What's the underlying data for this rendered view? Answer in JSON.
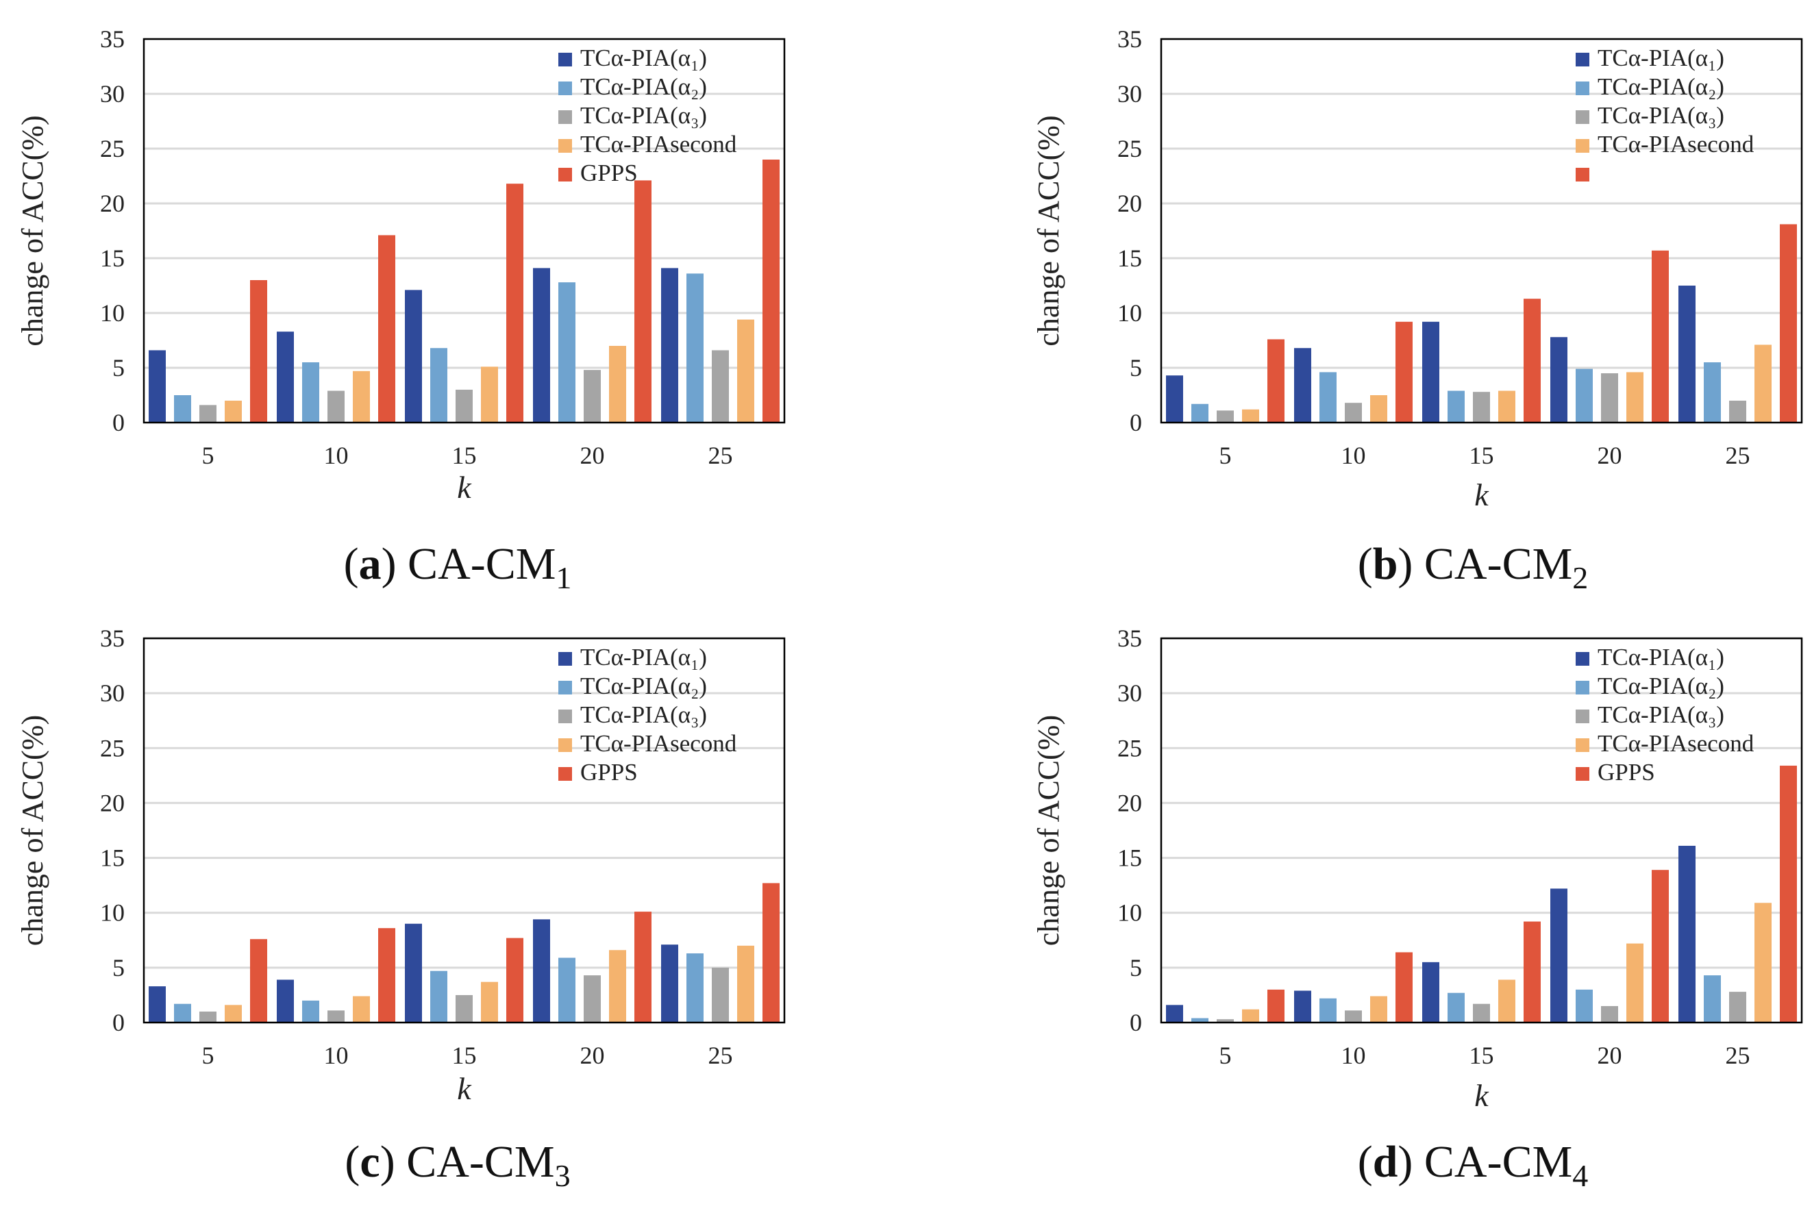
{
  "panels": [
    {
      "id": "a",
      "caption": {
        "letter": "a",
        "base": "CA-CM",
        "sub": "1"
      },
      "chart_data": {
        "type": "bar",
        "categories": [
          "5",
          "10",
          "15",
          "20",
          "25"
        ],
        "xlabel": "k",
        "ylabel": "change of ACC(%)",
        "ylim": [
          0,
          35
        ],
        "yticks": [
          0,
          5,
          10,
          15,
          20,
          25,
          30,
          35
        ],
        "grid": true,
        "legend_position": "top-right",
        "series": [
          {
            "name": "TCα-PIA(α₁)",
            "color": "#2f4a9a",
            "values": [
              6.6,
              8.3,
              12.1,
              14.1,
              14.1
            ]
          },
          {
            "name": "TCα-PIA(α₂)",
            "color": "#6fa3cf",
            "values": [
              2.5,
              5.5,
              6.8,
              12.8,
              13.6
            ]
          },
          {
            "name": "TCα-PIA(α₃)",
            "color": "#a5a5a5",
            "values": [
              1.6,
              2.9,
              3.0,
              4.8,
              6.6
            ]
          },
          {
            "name": "TCα-PIAsecond",
            "color": "#f4b36e",
            "values": [
              2.0,
              4.7,
              5.1,
              7.0,
              9.4
            ]
          },
          {
            "name": "GPPS",
            "color": "#e0553b",
            "values": [
              13.0,
              17.1,
              21.8,
              22.1,
              24.0
            ]
          }
        ]
      }
    },
    {
      "id": "b",
      "caption": {
        "letter": "b",
        "base": "CA-CM",
        "sub": "2"
      },
      "chart_data": {
        "type": "bar",
        "categories": [
          "5",
          "10",
          "15",
          "20",
          "25"
        ],
        "xlabel": "k",
        "ylabel": "change of ACC(%)",
        "ylim": [
          0,
          35
        ],
        "yticks": [
          0,
          5,
          10,
          15,
          20,
          25,
          30,
          35
        ],
        "grid": true,
        "legend_position": "top-right",
        "series": [
          {
            "name": "TCα-PIA(α₁)",
            "color": "#2f4a9a",
            "values": [
              4.3,
              6.8,
              9.2,
              7.8,
              12.5
            ]
          },
          {
            "name": "TCα-PIA(α₂)",
            "color": "#6fa3cf",
            "values": [
              1.7,
              4.6,
              2.9,
              4.9,
              5.5
            ]
          },
          {
            "name": "TCα-PIA(α₃)",
            "color": "#a5a5a5",
            "values": [
              1.1,
              1.8,
              2.8,
              4.5,
              2.0
            ]
          },
          {
            "name": "TCα-PIAsecond",
            "color": "#f4b36e",
            "values": [
              1.2,
              2.5,
              2.9,
              4.6,
              7.1
            ]
          },
          {
            "name": "",
            "color": "#e0553b",
            "values": [
              7.6,
              9.2,
              11.3,
              15.7,
              18.1
            ]
          }
        ]
      }
    },
    {
      "id": "c",
      "caption": {
        "letter": "c",
        "base": "CA-CM",
        "sub": "3"
      },
      "chart_data": {
        "type": "bar",
        "categories": [
          "5",
          "10",
          "15",
          "20",
          "25"
        ],
        "xlabel": "k",
        "ylabel": "change of ACC(%)",
        "ylim": [
          0,
          35
        ],
        "yticks": [
          0,
          5,
          10,
          15,
          20,
          25,
          30,
          35
        ],
        "grid": true,
        "legend_position": "top-right",
        "series": [
          {
            "name": "TCα-PIA(α₁)",
            "color": "#2f4a9a",
            "values": [
              3.3,
              3.9,
              9.0,
              9.4,
              7.1
            ]
          },
          {
            "name": "TCα-PIA(α₂)",
            "color": "#6fa3cf",
            "values": [
              1.7,
              2.0,
              4.7,
              5.9,
              6.3
            ]
          },
          {
            "name": "TCα-PIA(α₃)",
            "color": "#a5a5a5",
            "values": [
              1.0,
              1.1,
              2.5,
              4.3,
              5.0
            ]
          },
          {
            "name": "TCα-PIAsecond",
            "color": "#f4b36e",
            "values": [
              1.6,
              2.4,
              3.7,
              6.6,
              7.0
            ]
          },
          {
            "name": "GPPS",
            "color": "#e0553b",
            "values": [
              7.6,
              8.6,
              7.7,
              10.1,
              12.7
            ]
          }
        ]
      }
    },
    {
      "id": "d",
      "caption": {
        "letter": "d",
        "base": "CA-CM",
        "sub": "4"
      },
      "chart_data": {
        "type": "bar",
        "categories": [
          "5",
          "10",
          "15",
          "20",
          "25"
        ],
        "xlabel": "k",
        "ylabel": "change of ACC(%)",
        "ylim": [
          0,
          35
        ],
        "yticks": [
          0,
          5,
          10,
          15,
          20,
          25,
          30,
          35
        ],
        "grid": true,
        "legend_position": "top-right",
        "series": [
          {
            "name": "TCα-PIA(α₁)",
            "color": "#2f4a9a",
            "values": [
              1.6,
              2.9,
              5.5,
              12.2,
              16.1
            ]
          },
          {
            "name": "TCα-PIA(α₂)",
            "color": "#6fa3cf",
            "values": [
              0.4,
              2.2,
              2.7,
              3.0,
              4.3
            ]
          },
          {
            "name": "TCα-PIA(α₃)",
            "color": "#a5a5a5",
            "values": [
              0.3,
              1.1,
              1.7,
              1.5,
              2.8
            ]
          },
          {
            "name": "TCα-PIAsecond",
            "color": "#f4b36e",
            "values": [
              1.2,
              2.4,
              3.9,
              7.2,
              10.9
            ]
          },
          {
            "name": "GPPS",
            "color": "#e0553b",
            "values": [
              3.0,
              6.4,
              9.2,
              13.9,
              23.4
            ]
          }
        ]
      }
    }
  ]
}
